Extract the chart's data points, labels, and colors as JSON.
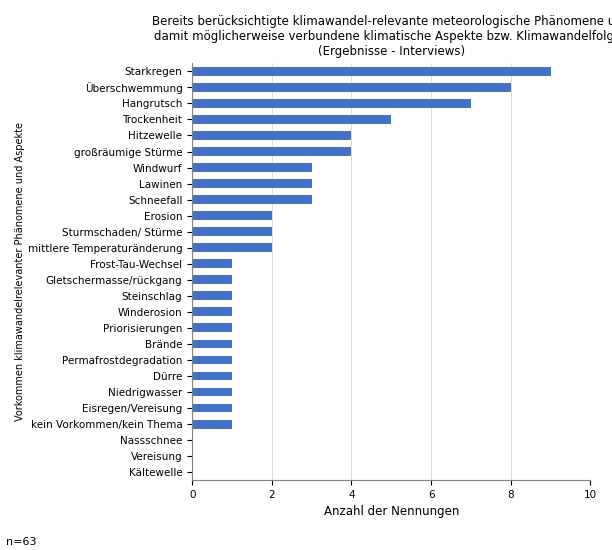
{
  "title_line1": "Bereits berücksichtigte klimawandel-relevante meteorologische Phänomene und",
  "title_line2": "damit möglicherweise verbundene klimatische Aspekte bzw. Klimawandelfolgen",
  "title_line3": "(Ergebnisse - Interviews)",
  "xlabel": "Anzahl der Nennungen",
  "ylabel": "Vorkommen klimawandelrelevanter Phänomene und Aspekte",
  "footnote": "n=63",
  "categories": [
    "Kältewelle",
    "Vereisung",
    "Nassschnee",
    "kein Vorkommen/kein Thema",
    "Eisregen/Vereisung",
    "Niedrigwasser",
    "Dürre",
    "Permafrostdegradation",
    "Brände",
    "Priorisierungen",
    "Winderosion",
    "Steinschlag",
    "Gletschermasse/rückgang",
    "Frost-Tau-Wechsel",
    "mittlere Temperaturänderung",
    "Sturmschaden/ Stürme",
    "Erosion",
    "Schneefall",
    "Lawinen",
    "Windwurf",
    "großräumige Stürme",
    "Hitzewelle",
    "Trockenheit",
    "Hangrutsch",
    "Überschwemmung",
    "Starkregen"
  ],
  "values": [
    0,
    0,
    0,
    1,
    1,
    1,
    1,
    1,
    1,
    1,
    1,
    1,
    1,
    1,
    2,
    2,
    2,
    3,
    3,
    3,
    4,
    4,
    5,
    7,
    8,
    9
  ],
  "bar_color": "#4472C4",
  "xlim": [
    0,
    10
  ],
  "xticks": [
    0,
    2,
    4,
    6,
    8,
    10
  ],
  "figsize": [
    6.12,
    5.5
  ],
  "dpi": 100,
  "title_fontsize": 8.5,
  "tick_fontsize": 7.5,
  "ylabel_fontsize": 7.0,
  "xlabel_fontsize": 8.5,
  "footnote_fontsize": 8
}
